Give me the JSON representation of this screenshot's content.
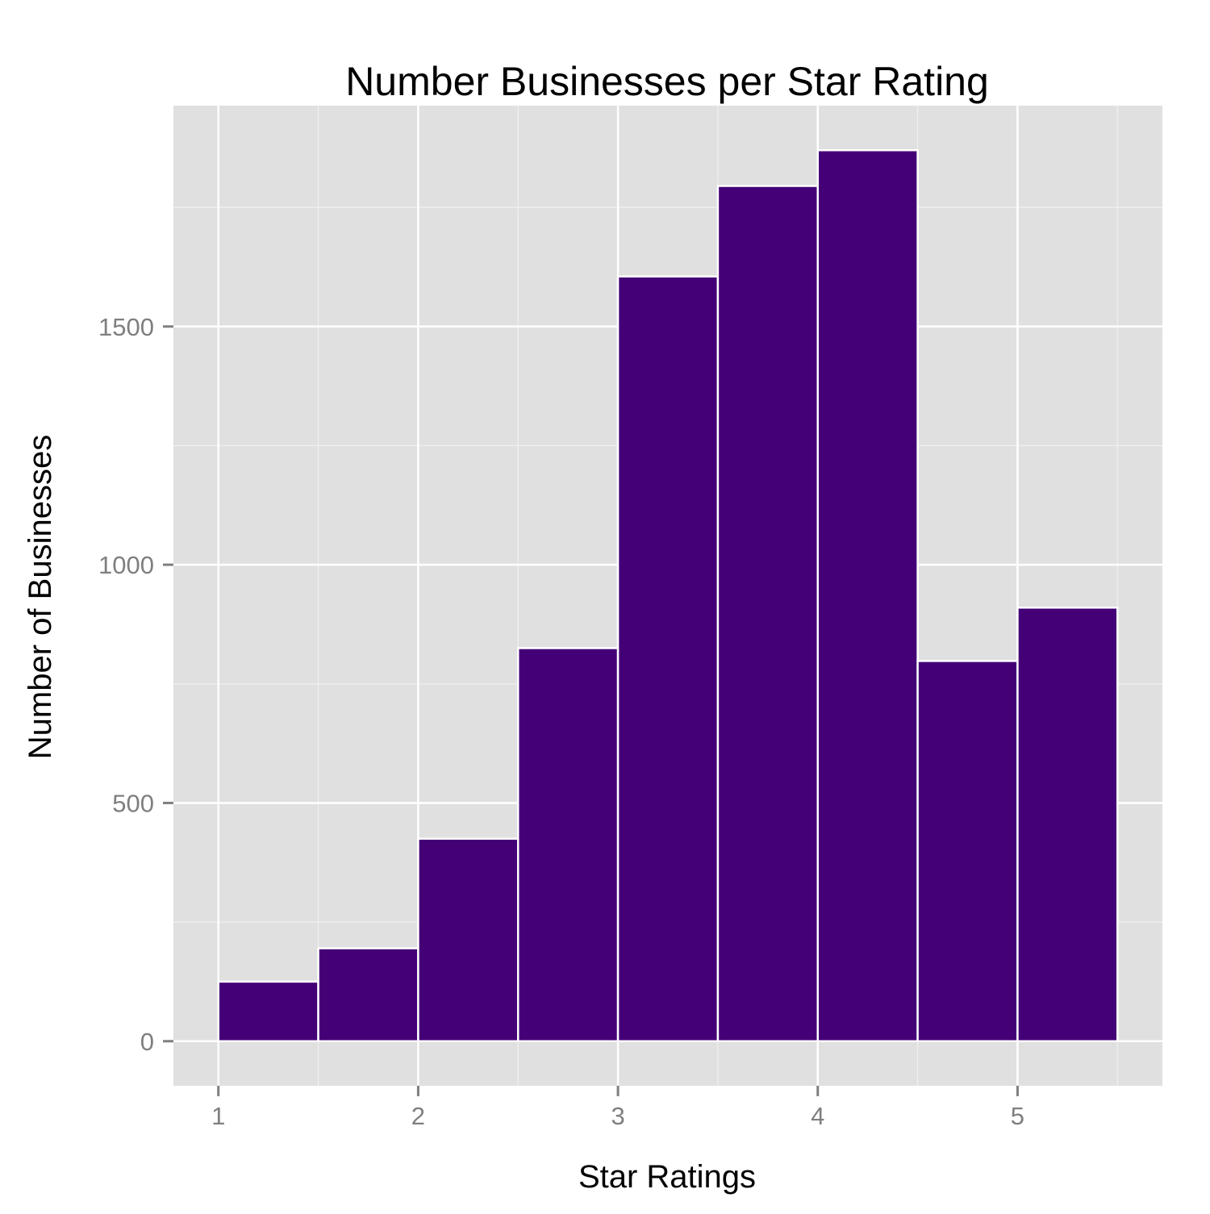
{
  "chart_data": {
    "type": "bar",
    "title": "Number Businesses per Star Rating",
    "xlabel": "Star Ratings",
    "ylabel": "Number of Businesses",
    "bins": [
      {
        "x0": 1.0,
        "x1": 1.5,
        "count": 125
      },
      {
        "x0": 1.5,
        "x1": 2.0,
        "count": 195
      },
      {
        "x0": 2.0,
        "x1": 2.5,
        "count": 425
      },
      {
        "x0": 2.5,
        "x1": 3.0,
        "count": 825
      },
      {
        "x0": 3.0,
        "x1": 3.5,
        "count": 1605
      },
      {
        "x0": 3.5,
        "x1": 4.0,
        "count": 1795
      },
      {
        "x0": 4.0,
        "x1": 4.5,
        "count": 1870
      },
      {
        "x0": 4.5,
        "x1": 5.0,
        "count": 798
      },
      {
        "x0": 5.0,
        "x1": 5.5,
        "count": 910
      }
    ],
    "xlim": [
      0.775,
      5.725
    ],
    "ylim": [
      -93.5,
      1963.5
    ],
    "x_ticks": [
      1,
      2,
      3,
      4,
      5
    ],
    "x_tick_labels": [
      "1",
      "2",
      "3",
      "4",
      "5"
    ],
    "y_ticks": [
      0,
      500,
      1000,
      1500
    ],
    "y_tick_labels": [
      "0",
      "500",
      "1000",
      "1500"
    ],
    "x_minor_ticks": [
      1.5,
      2.5,
      3.5,
      4.5,
      5.5
    ],
    "y_minor_ticks": [
      250,
      750,
      1250,
      1750
    ],
    "grid": true,
    "legend": "none",
    "colors": {
      "bar_fill": "#440077",
      "bar_outline": "#ffffff",
      "panel_background": "#e0e0e0",
      "grid_major": "#ffffff",
      "grid_minor": "#f0f0f0",
      "tick_label": "#7f7f7f",
      "tick_mark": "#7f7f7f",
      "text": "#000000"
    }
  }
}
